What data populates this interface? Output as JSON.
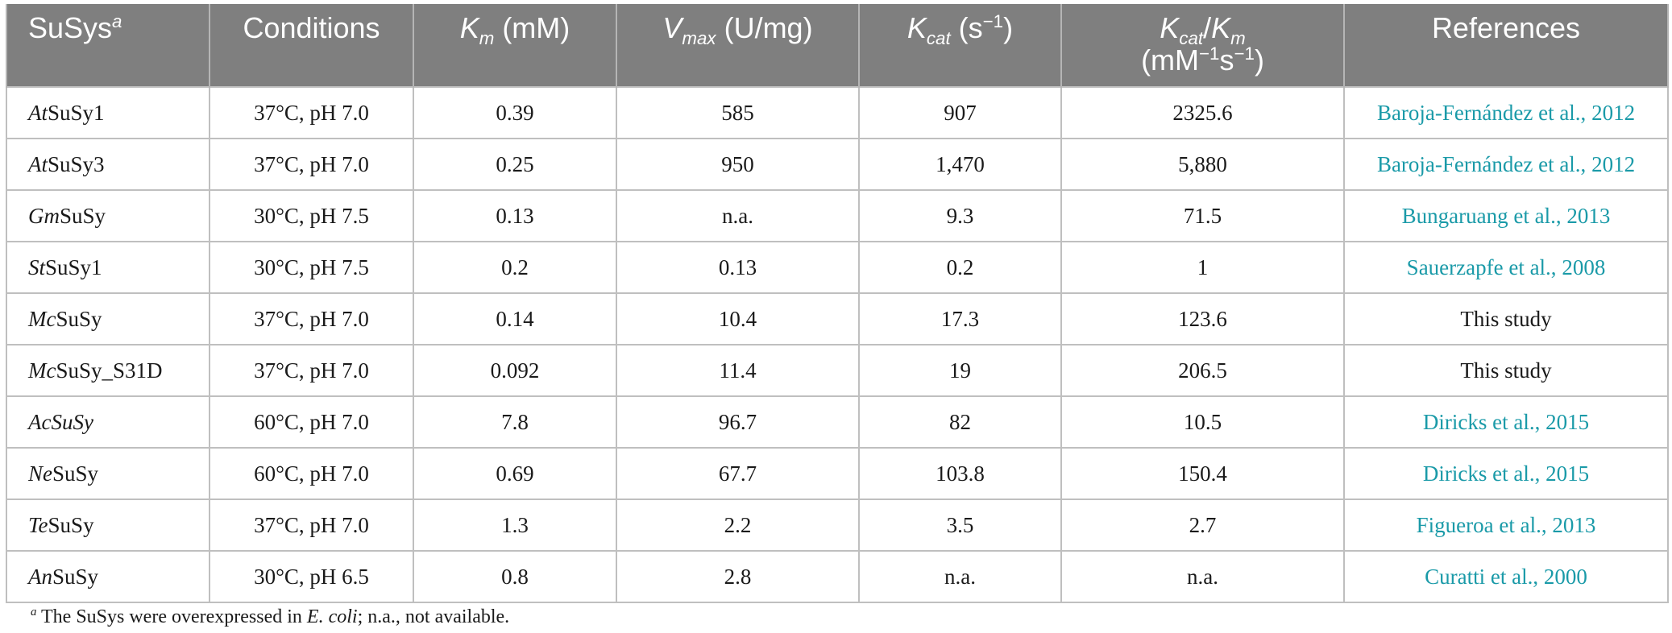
{
  "headers": {
    "susys": "SuSys",
    "susys_sup": "a",
    "conditions": "Conditions",
    "km_sym": "K",
    "km_sub": "m",
    "km_unit": " (mM)",
    "vmax_sym": "V",
    "vmax_sub": "max",
    "vmax_unit": " (U/mg)",
    "kcat_sym": "K",
    "kcat_sub": "cat",
    "kcat_unit": " (s",
    "kcat_sup": "−1",
    "kcat_close": ")",
    "ratio_k1": "K",
    "ratio_sub1": "cat",
    "ratio_slash": "/",
    "ratio_k2": "K",
    "ratio_sub2": "m",
    "ratio_unit_a": "(mM",
    "ratio_unit_sup_a": "−1",
    "ratio_unit_b": "s",
    "ratio_unit_sup_b": "−1",
    "ratio_unit_close": ")",
    "references": "References"
  },
  "rows": [
    {
      "prefix": "At",
      "name": "SuSy1",
      "conditions": "37°C, pH 7.0",
      "km": "0.39",
      "vmax": "585",
      "kcat": "907",
      "ratio": "2325.6",
      "ref_authors": "Baroja-Fernández et al., ",
      "ref_year": "2012",
      "ref_link": true
    },
    {
      "prefix": "At",
      "name": "SuSy3",
      "conditions": "37°C, pH 7.0",
      "km": "0.25",
      "vmax": "950",
      "kcat": "1,470",
      "ratio": "5,880",
      "ref_authors": "Baroja-Fernández et al., ",
      "ref_year": "2012",
      "ref_link": true
    },
    {
      "prefix": "Gm",
      "name": "SuSy",
      "conditions": "30°C, pH 7.5",
      "km": "0.13",
      "vmax": "n.a.",
      "kcat": "9.3",
      "ratio": "71.5",
      "ref_authors": "Bungaruang et al., ",
      "ref_year": "2013",
      "ref_link": true
    },
    {
      "prefix": "St",
      "name": "SuSy1",
      "conditions": "30°C, pH 7.5",
      "km": "0.2",
      "vmax": "0.13",
      "kcat": "0.2",
      "ratio": "1",
      "ref_authors": "Sauerzapfe et al., ",
      "ref_year": "2008",
      "ref_link": true
    },
    {
      "prefix": "Mc",
      "name": "SuSy",
      "conditions": "37°C, pH 7.0",
      "km": "0.14",
      "vmax": "10.4",
      "kcat": "17.3",
      "ratio": "123.6",
      "ref_authors": "This study",
      "ref_year": "",
      "ref_link": false
    },
    {
      "prefix": "Mc",
      "name": "SuSy_S31D",
      "conditions": "37°C, pH 7.0",
      "km": "0.092",
      "vmax": "11.4",
      "kcat": "19",
      "ratio": "206.5",
      "ref_authors": "This study",
      "ref_year": "",
      "ref_link": false
    },
    {
      "prefix": "AcSuSy",
      "name": "",
      "conditions": "60°C, pH 7.0",
      "km": "7.8",
      "vmax": "96.7",
      "kcat": "82",
      "ratio": "10.5",
      "ref_authors": "Diricks et al., ",
      "ref_year": "2015",
      "ref_link": true
    },
    {
      "prefix": "Ne",
      "name": "SuSy",
      "conditions": "60°C, pH 7.0",
      "km": "0.69",
      "vmax": "67.7",
      "kcat": "103.8",
      "ratio": "150.4",
      "ref_authors": "Diricks et al., ",
      "ref_year": "2015",
      "ref_link": true
    },
    {
      "prefix": "Te",
      "name": "SuSy",
      "conditions": "37°C, pH 7.0",
      "km": "1.3",
      "vmax": "2.2",
      "kcat": "3.5",
      "ratio": "2.7",
      "ref_authors": "Figueroa et al., ",
      "ref_year": "2013",
      "ref_link": true
    },
    {
      "prefix": "An",
      "name": "SuSy",
      "conditions": "30°C, pH 6.5",
      "km": "0.8",
      "vmax": "2.8",
      "kcat": "n.a.",
      "ratio": "n.a.",
      "ref_authors": "Curatti et al., ",
      "ref_year": "2000",
      "ref_link": true
    }
  ],
  "footnote": {
    "marker": "a",
    "text_before": " The SuSys were overexpressed in ",
    "organism": "E. coli",
    "text_after": "; n.a., not available."
  }
}
